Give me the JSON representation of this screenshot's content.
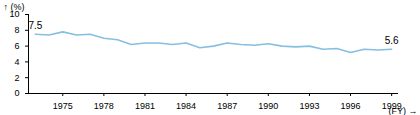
{
  "chart_data": {
    "type": "line",
    "x": [
      1973,
      1974,
      1975,
      1976,
      1977,
      1978,
      1979,
      1980,
      1981,
      1982,
      1983,
      1984,
      1985,
      1986,
      1987,
      1988,
      1989,
      1990,
      1991,
      1992,
      1993,
      1994,
      1995,
      1996,
      1997,
      1998,
      1999
    ],
    "values": [
      7.5,
      7.4,
      7.8,
      7.4,
      7.5,
      7.0,
      6.8,
      6.2,
      6.4,
      6.4,
      6.2,
      6.4,
      5.8,
      6.0,
      6.4,
      6.2,
      6.1,
      6.3,
      6.0,
      5.9,
      6.0,
      5.6,
      5.7,
      5.2,
      5.6,
      5.5,
      5.6
    ],
    "color": "#86bfdf",
    "xlabel": "(FY)",
    "ylabel": "(%)",
    "xlim": [
      1972.5,
      1999.5
    ],
    "ylim": [
      0,
      10
    ],
    "xticks": [
      1975,
      1978,
      1981,
      1984,
      1987,
      1990,
      1993,
      1996,
      1999
    ],
    "yticks": [
      0,
      2,
      4,
      6,
      8,
      10
    ],
    "grid": false,
    "annotations": [
      {
        "x": 1973,
        "y": 7.5,
        "text": "7.5"
      },
      {
        "x": 1999,
        "y": 5.6,
        "text": "5.6"
      }
    ]
  }
}
